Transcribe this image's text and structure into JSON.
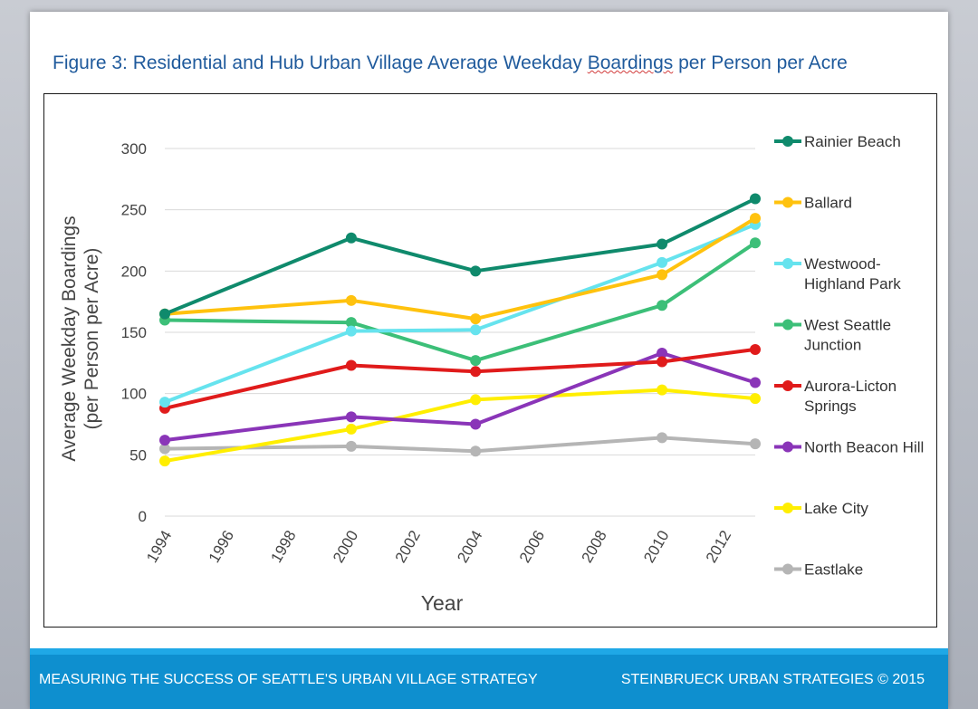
{
  "title": {
    "before": "Figure 3: Residential and Hub Urban Village Average Weekday ",
    "flagged": "Boardings",
    "after": " per Person per Acre"
  },
  "footer": {
    "left": "MEASURING THE SUCCESS OF SEATTLE'S URBAN VILLAGE STRATEGY",
    "right": "STEINBRUECK URBAN STRATEGIES © 2015"
  },
  "chart_data": {
    "type": "line",
    "title": "Figure 3: Residential and Hub Urban Village Average Weekday Boardings per Person per Acre",
    "xlabel": "Year",
    "ylabel": [
      "Average Weekday Boardings",
      "(per Person per Acre)"
    ],
    "xlim": [
      1994,
      2013
    ],
    "ylim": [
      0,
      300
    ],
    "xticks": [
      "1994",
      "1996",
      "1998",
      "2000",
      "2002",
      "2004",
      "2006",
      "2008",
      "2010",
      "2012"
    ],
    "yticks": [
      "0",
      "50",
      "100",
      "150",
      "200",
      "250",
      "300"
    ],
    "grid": "horizontal",
    "legend_position": "right",
    "x": [
      1994,
      2000,
      2004,
      2010,
      2013
    ],
    "series": [
      {
        "name": "Rainier Beach",
        "label_lines": [
          "Rainier Beach"
        ],
        "color": "#0f8a6c",
        "values": [
          165,
          227,
          200,
          222,
          259
        ]
      },
      {
        "name": "Ballard",
        "label_lines": [
          "Ballard"
        ],
        "color": "#ffc20e",
        "values": [
          165,
          176,
          161,
          197,
          243
        ]
      },
      {
        "name": "Westwood-Highland Park",
        "label_lines": [
          "Westwood-",
          "Highland Park"
        ],
        "color": "#66e3ee",
        "values": [
          93,
          151,
          152,
          207,
          238
        ]
      },
      {
        "name": "West Seattle Junction",
        "label_lines": [
          "West Seattle",
          "Junction"
        ],
        "color": "#3cbf78",
        "values": [
          160,
          158,
          127,
          172,
          223
        ]
      },
      {
        "name": "Aurora-Licton Springs",
        "label_lines": [
          "Aurora-Licton",
          "Springs"
        ],
        "color": "#e01b1b",
        "values": [
          88,
          123,
          118,
          126,
          136
        ]
      },
      {
        "name": "North Beacon Hill",
        "label_lines": [
          "North Beacon Hill"
        ],
        "color": "#8a35b8",
        "values": [
          62,
          81,
          75,
          133,
          109
        ]
      },
      {
        "name": "Lake City",
        "label_lines": [
          "Lake City"
        ],
        "color": "#ffee00",
        "values": [
          45,
          71,
          95,
          103,
          96
        ]
      },
      {
        "name": "Eastlake",
        "label_lines": [
          "Eastlake"
        ],
        "color": "#b5b5b5",
        "values": [
          55,
          57,
          53,
          64,
          59
        ]
      }
    ]
  }
}
